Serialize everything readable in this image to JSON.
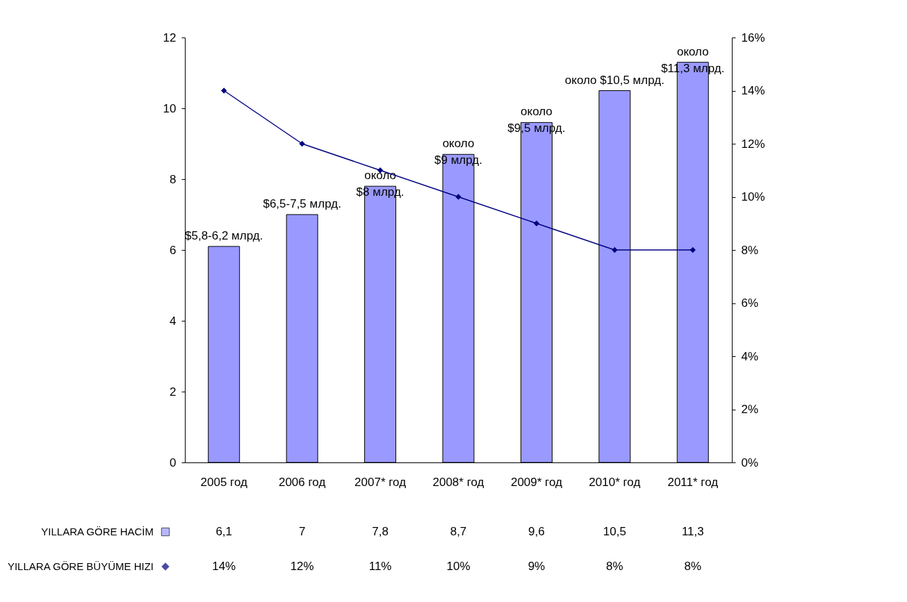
{
  "chart_data": {
    "type": "bar",
    "categories": [
      "2005 год",
      "2006 год",
      "2007* год",
      "2008* год",
      "2009* год",
      "2010* год",
      "2011* год"
    ],
    "series": [
      {
        "name": "YILLARA GÖRE HACİM",
        "color": "#9999ff",
        "values": [
          6.1,
          7,
          7.8,
          8.7,
          9.6,
          10.5,
          11.3
        ],
        "value_labels": [
          "6,1",
          "7",
          "7,8",
          "8,7",
          "9,6",
          "10,5",
          "11,3"
        ]
      },
      {
        "name": "YILLARA GÖRE BÜYÜME HIZI",
        "type": "line",
        "axis": "y2",
        "color": "#000080",
        "values": [
          14,
          12,
          11,
          10,
          9,
          8,
          8
        ],
        "value_labels": [
          "14%",
          "12%",
          "11%",
          "10%",
          "9%",
          "8%",
          "8%"
        ]
      }
    ],
    "ylim": [
      0,
      12
    ],
    "yticks": [
      0,
      2,
      4,
      6,
      8,
      10,
      12
    ],
    "y2lim": [
      0,
      16
    ],
    "y2ticks": [
      {
        "value": 0,
        "label": "0%"
      },
      {
        "value": 2,
        "label": "2%"
      },
      {
        "value": 4,
        "label": "4%"
      },
      {
        "value": 6,
        "label": "6%"
      },
      {
        "value": 8,
        "label": "8%"
      },
      {
        "value": 10,
        "label": "10%"
      },
      {
        "value": 12,
        "label": "12%"
      },
      {
        "value": 14,
        "label": "14%"
      },
      {
        "value": 16,
        "label": "16%"
      }
    ],
    "legend": "bottom left",
    "marker": "diamond",
    "line_style": "solid",
    "annotations": [
      {
        "text": "$5,8-6,2 млрд.",
        "x": "2005 год",
        "y": 6.1
      },
      {
        "text": "$6,5-7,5 млрд.",
        "x": "2006 год",
        "y": 7
      },
      {
        "text": "около\n$8 млрд.",
        "x": "2007* год",
        "y": 7.8
      },
      {
        "text": "около\n$9 млрд.",
        "x": "2008* год",
        "y": 8.7
      },
      {
        "text": "около\n$9,5 млрд.",
        "x": "2009* год",
        "y": 9.6
      },
      {
        "text": "около $10,5 млрд.",
        "x": "2010* год",
        "y": 10.5
      },
      {
        "text": "около\n$11,3 млрд.",
        "x": "2011* год",
        "y": 11.3
      }
    ]
  }
}
